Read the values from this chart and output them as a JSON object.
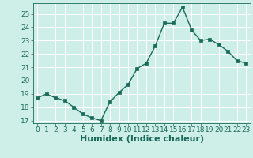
{
  "x": [
    0,
    1,
    2,
    3,
    4,
    5,
    6,
    7,
    8,
    9,
    10,
    11,
    12,
    13,
    14,
    15,
    16,
    17,
    18,
    19,
    20,
    21,
    22,
    23
  ],
  "y": [
    18.7,
    19.0,
    18.7,
    18.5,
    18.0,
    17.5,
    17.2,
    17.0,
    18.4,
    19.1,
    19.7,
    20.9,
    21.3,
    22.6,
    24.3,
    24.3,
    25.5,
    23.8,
    23.0,
    23.1,
    22.7,
    22.2,
    21.5,
    21.3
  ],
  "line_color": "#1a6b5a",
  "marker": "s",
  "markersize": 2.5,
  "linewidth": 1.0,
  "xlabel": "Humidex (Indice chaleur)",
  "xlim": [
    -0.5,
    23.5
  ],
  "ylim": [
    16.8,
    25.8
  ],
  "yticks": [
    17,
    18,
    19,
    20,
    21,
    22,
    23,
    24,
    25
  ],
  "xticks": [
    0,
    1,
    2,
    3,
    4,
    5,
    6,
    7,
    8,
    9,
    10,
    11,
    12,
    13,
    14,
    15,
    16,
    17,
    18,
    19,
    20,
    21,
    22,
    23
  ],
  "bg_color": "#ceeee8",
  "grid_color": "#ffffff",
  "tick_color": "#1a6b5a",
  "label_color": "#1a6b5a",
  "tick_fontsize": 6.5,
  "xlabel_fontsize": 8.0
}
